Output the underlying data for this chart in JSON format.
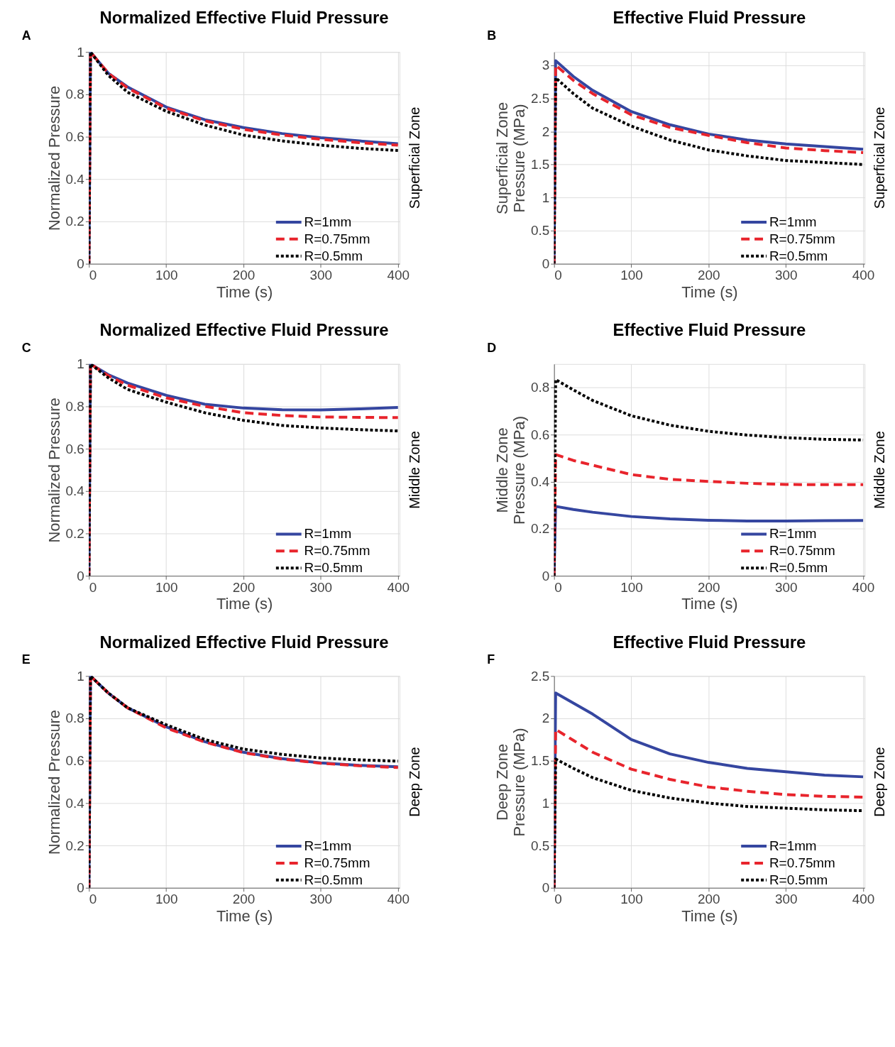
{
  "chart_data": [
    {
      "type": "line",
      "title": "Normalized Effective Fluid Pressure",
      "xlabel": "Time (s)",
      "ylabel": "Normalized Pressure",
      "y2label": "Superficial Zone",
      "annotations": [
        "A"
      ],
      "xlim": [
        0,
        402
      ],
      "xticks": [
        0,
        100,
        200,
        300,
        400
      ],
      "ylim": [
        0,
        1
      ],
      "yticks": [
        0,
        0.2,
        0.4,
        0.6,
        0.8,
        1
      ],
      "grid": true,
      "legend": "bottom right",
      "x": [
        0,
        2,
        25,
        50,
        100,
        150,
        200,
        250,
        300,
        350,
        400
      ],
      "series": [
        {
          "name": "R=1mm",
          "color": "#3546a0",
          "line_style": "solid",
          "values": [
            0,
            1.0,
            0.9,
            0.835,
            0.74,
            0.68,
            0.643,
            0.615,
            0.595,
            0.58,
            0.567
          ]
        },
        {
          "name": "R=0.75mm",
          "color": "#e8242c",
          "line_style": "dashed",
          "values": [
            0,
            1.0,
            0.9,
            0.83,
            0.735,
            0.675,
            0.635,
            0.608,
            0.588,
            0.572,
            0.56
          ]
        },
        {
          "name": "R=0.5mm",
          "color": "#000000",
          "line_style": "dotted",
          "values": [
            0,
            1.0,
            0.89,
            0.81,
            0.72,
            0.655,
            0.608,
            0.58,
            0.56,
            0.545,
            0.535
          ]
        }
      ]
    },
    {
      "type": "line",
      "title": "Effective Fluid Pressure",
      "xlabel": "Time (s)",
      "ylabel": "Superficial Zone\nPressure (MPa)",
      "y2label": "Superficial Zone",
      "annotations": [
        "B"
      ],
      "xlim": [
        0,
        402
      ],
      "xticks": [
        0,
        100,
        200,
        300,
        400
      ],
      "ylim": [
        0,
        3.2
      ],
      "yticks": [
        0,
        0.5,
        1,
        1.5,
        2,
        2.5,
        3
      ],
      "grid": true,
      "legend": "bottom right",
      "x": [
        0,
        2,
        25,
        50,
        100,
        150,
        200,
        250,
        300,
        350,
        400
      ],
      "series": [
        {
          "name": "R=1mm",
          "color": "#3546a0",
          "line_style": "solid",
          "values": [
            0,
            3.07,
            2.83,
            2.62,
            2.3,
            2.1,
            1.96,
            1.87,
            1.81,
            1.77,
            1.73
          ]
        },
        {
          "name": "R=0.75mm",
          "color": "#e8242c",
          "line_style": "dashed",
          "values": [
            0,
            3.0,
            2.77,
            2.57,
            2.25,
            2.06,
            1.94,
            1.83,
            1.75,
            1.71,
            1.68
          ]
        },
        {
          "name": "R=0.5mm",
          "color": "#000000",
          "line_style": "dotted",
          "values": [
            0,
            2.81,
            2.57,
            2.35,
            2.08,
            1.87,
            1.72,
            1.63,
            1.56,
            1.53,
            1.5
          ]
        }
      ]
    },
    {
      "type": "line",
      "title": "Normalized Effective Fluid Pressure",
      "xlabel": "Time (s)",
      "ylabel": "Normalized Pressure",
      "y2label": "Middle Zone",
      "annotations": [
        "C"
      ],
      "xlim": [
        0,
        402
      ],
      "xticks": [
        0,
        100,
        200,
        300,
        400
      ],
      "ylim": [
        0,
        1
      ],
      "yticks": [
        0,
        0.2,
        0.4,
        0.6,
        0.8,
        1
      ],
      "grid": true,
      "legend": "bottom right",
      "x": [
        0,
        2,
        25,
        50,
        100,
        150,
        200,
        250,
        300,
        350,
        400
      ],
      "series": [
        {
          "name": "R=1mm",
          "color": "#3546a0",
          "line_style": "solid",
          "values": [
            0,
            1.0,
            0.95,
            0.91,
            0.852,
            0.81,
            0.792,
            0.784,
            0.783,
            0.788,
            0.795
          ]
        },
        {
          "name": "R=0.75mm",
          "color": "#e8242c",
          "line_style": "dashed",
          "values": [
            0,
            1.0,
            0.945,
            0.9,
            0.84,
            0.8,
            0.77,
            0.757,
            0.75,
            0.748,
            0.747
          ]
        },
        {
          "name": "R=0.5mm",
          "color": "#000000",
          "line_style": "dotted",
          "values": [
            0,
            1.0,
            0.935,
            0.88,
            0.82,
            0.77,
            0.734,
            0.71,
            0.698,
            0.69,
            0.684
          ]
        }
      ]
    },
    {
      "type": "line",
      "title": "Effective Fluid Pressure",
      "xlabel": "Time (s)",
      "ylabel": "Middle Zone\nPressure (MPa)",
      "y2label": "Middle Zone",
      "annotations": [
        "D"
      ],
      "xlim": [
        0,
        402
      ],
      "xticks": [
        0,
        100,
        200,
        300,
        400
      ],
      "ylim": [
        0,
        0.9
      ],
      "yticks": [
        0,
        0.2,
        0.4,
        0.6,
        0.8
      ],
      "grid": true,
      "legend": "bottom right",
      "x": [
        0,
        2,
        25,
        50,
        100,
        150,
        200,
        250,
        300,
        350,
        400
      ],
      "series": [
        {
          "name": "R=1mm",
          "color": "#3546a0",
          "line_style": "solid",
          "values": [
            0,
            0.295,
            0.282,
            0.27,
            0.252,
            0.242,
            0.236,
            0.233,
            0.233,
            0.234,
            0.235
          ]
        },
        {
          "name": "R=0.75mm",
          "color": "#e8242c",
          "line_style": "dashed",
          "values": [
            0,
            0.515,
            0.49,
            0.47,
            0.43,
            0.41,
            0.401,
            0.393,
            0.388,
            0.387,
            0.387
          ]
        },
        {
          "name": "R=0.5mm",
          "color": "#000000",
          "line_style": "dotted",
          "values": [
            0,
            0.834,
            0.79,
            0.745,
            0.68,
            0.64,
            0.614,
            0.598,
            0.587,
            0.58,
            0.577
          ]
        }
      ]
    },
    {
      "type": "line",
      "title": "Normalized Effective Fluid Pressure",
      "xlabel": "Time (s)",
      "ylabel": "Normalized Pressure",
      "y2label": "Deep Zone",
      "annotations": [
        "E"
      ],
      "xlim": [
        0,
        402
      ],
      "xticks": [
        0,
        100,
        200,
        300,
        400
      ],
      "ylim": [
        0,
        1
      ],
      "yticks": [
        0,
        0.2,
        0.4,
        0.6,
        0.8,
        1
      ],
      "grid": true,
      "legend": "bottom right",
      "x": [
        0,
        2,
        25,
        50,
        100,
        150,
        200,
        250,
        300,
        350,
        400
      ],
      "series": [
        {
          "name": "R=1mm",
          "color": "#3546a0",
          "line_style": "solid",
          "values": [
            0,
            1.0,
            0.92,
            0.85,
            0.76,
            0.69,
            0.64,
            0.61,
            0.59,
            0.578,
            0.571
          ]
        },
        {
          "name": "R=0.75mm",
          "color": "#e8242c",
          "line_style": "dashed",
          "values": [
            0,
            1.0,
            0.92,
            0.85,
            0.755,
            0.688,
            0.638,
            0.608,
            0.588,
            0.576,
            0.568
          ]
        },
        {
          "name": "R=0.5mm",
          "color": "#000000",
          "line_style": "dotted",
          "values": [
            0,
            1.0,
            0.92,
            0.85,
            0.77,
            0.7,
            0.655,
            0.63,
            0.613,
            0.604,
            0.598
          ]
        }
      ]
    },
    {
      "type": "line",
      "title": "Effective Fluid Pressure",
      "xlabel": "Time (s)",
      "ylabel": "Deep Zone\nPressure (MPa)",
      "y2label": "Deep Zone",
      "annotations": [
        "F"
      ],
      "xlim": [
        0,
        402
      ],
      "xticks": [
        0,
        100,
        200,
        300,
        400
      ],
      "ylim": [
        0,
        2.5
      ],
      "yticks": [
        0,
        0.5,
        1,
        1.5,
        2,
        2.5
      ],
      "grid": true,
      "legend": "bottom right",
      "x": [
        0,
        2,
        25,
        50,
        100,
        150,
        200,
        250,
        300,
        350,
        400
      ],
      "series": [
        {
          "name": "R=1mm",
          "color": "#3546a0",
          "line_style": "solid",
          "values": [
            0,
            2.3,
            2.18,
            2.05,
            1.75,
            1.58,
            1.48,
            1.41,
            1.37,
            1.33,
            1.31
          ]
        },
        {
          "name": "R=0.75mm",
          "color": "#e8242c",
          "line_style": "dashed",
          "values": [
            0,
            1.87,
            1.74,
            1.6,
            1.4,
            1.28,
            1.19,
            1.14,
            1.1,
            1.08,
            1.07
          ]
        },
        {
          "name": "R=0.5mm",
          "color": "#000000",
          "line_style": "dotted",
          "values": [
            0,
            1.52,
            1.41,
            1.3,
            1.15,
            1.06,
            1.0,
            0.96,
            0.94,
            0.92,
            0.91
          ]
        }
      ]
    }
  ]
}
